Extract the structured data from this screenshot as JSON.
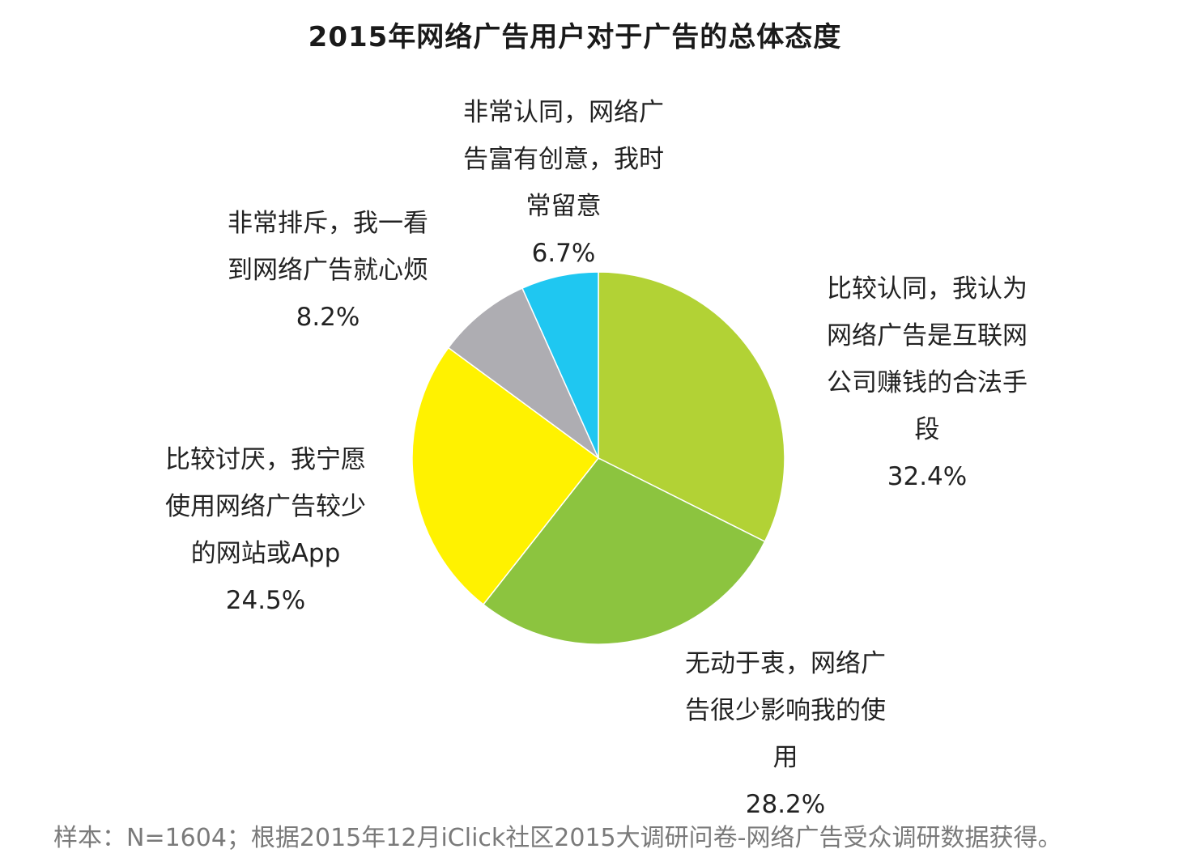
{
  "chart_data": {
    "type": "pie",
    "title": "2015年网络广告用户对于广告的总体态度",
    "slices": [
      {
        "label_lines": [
          "比较认同，我认为",
          "网络广告是互联网",
          "公司赚钱的合法手",
          "段"
        ],
        "value": 32.4,
        "value_label": "32.4%",
        "color": "#b2d235"
      },
      {
        "label_lines": [
          "无动于衷，网络广",
          "告很少影响我的使",
          "用"
        ],
        "value": 28.2,
        "value_label": "28.2%",
        "color": "#8cc43f"
      },
      {
        "label_lines": [
          "比较讨厌，我宁愿",
          "使用网络广告较少",
          "的网站或App"
        ],
        "value": 24.5,
        "value_label": "24.5%",
        "color": "#fff200"
      },
      {
        "label_lines": [
          "非常排斥，我一看",
          "到网络广告就心烦"
        ],
        "value": 8.2,
        "value_label": "8.2%",
        "color": "#aeadb2"
      },
      {
        "label_lines": [
          "非常认同，网络广",
          "告富有创意，我时",
          "常留意"
        ],
        "value": 6.7,
        "value_label": "6.7%",
        "color": "#1fc7f1"
      }
    ]
  },
  "footnote": "样本：N=1604；根据2015年12月iClick社区2015大调研问卷-网络广告受众调研数据获得。"
}
